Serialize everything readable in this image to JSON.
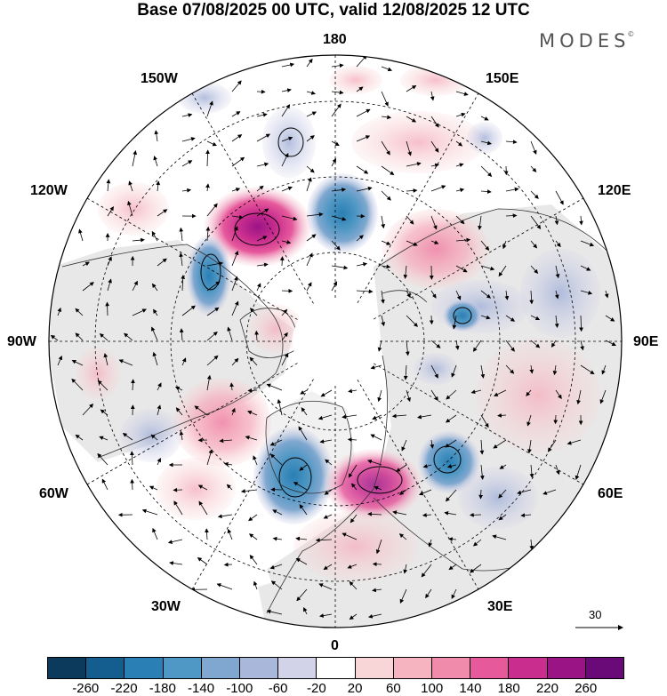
{
  "title": "Base 07/08/2025 00 UTC, valid 12/08/2025 12 UTC",
  "brand": "MODES",
  "brand_mark": "©",
  "longitude_labels": {
    "top": "180",
    "top_left": "150W",
    "top_right": "150E",
    "upper_left": "120W",
    "upper_right": "120E",
    "left": "90W",
    "right": "90E",
    "lower_left": "60W",
    "lower_right": "60E",
    "bottom_left": "30W",
    "bottom_right": "30E",
    "bottom": "0"
  },
  "reference_vector_label": "30",
  "colorbar": {
    "colors": [
      "#0b3a5c",
      "#135e8f",
      "#2a7fb4",
      "#4f97c4",
      "#7fa7cf",
      "#a9b7da",
      "#d2d2e8",
      "#ffffff",
      "#f8d6d8",
      "#f5b4c0",
      "#f08bac",
      "#e65a9c",
      "#c92d8e",
      "#9a1486",
      "#6a0a78"
    ],
    "ticks": [
      "-260",
      "-220",
      "-180",
      "-140",
      "-100",
      "-60",
      "-20",
      "20",
      "60",
      "100",
      "140",
      "180",
      "220",
      "260"
    ]
  }
}
